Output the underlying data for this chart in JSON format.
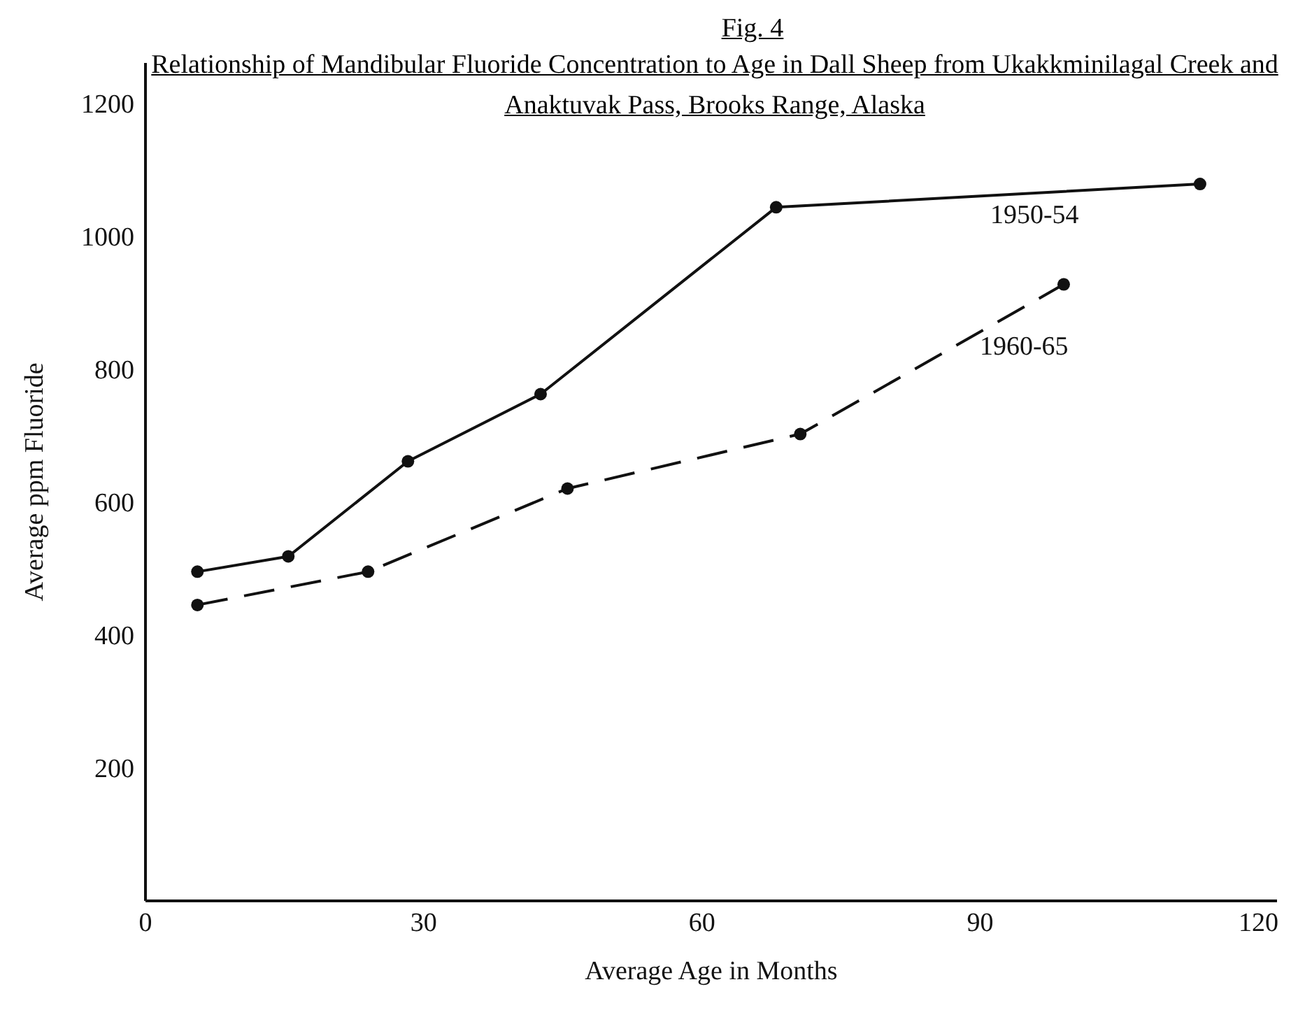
{
  "chart_data": {
    "type": "line",
    "title": "Fig. 4",
    "subtitle": "Relationship of Mandibular Fluoride Concentration to Age in Dall Sheep from Ukakkminilagal Creek and Anaktuvak Pass, Brooks Range, Alaska",
    "xlabel": "Average Age in Months",
    "ylabel": "Average ppm  Fluoride",
    "xlim": [
      0,
      122
    ],
    "xticks": [
      0,
      30,
      60,
      90,
      120
    ],
    "ylim": [
      0,
      1260
    ],
    "yticks": [
      200,
      400,
      600,
      800,
      1000,
      1200
    ],
    "grid": false,
    "legend": false,
    "marker": "circle",
    "series": [
      {
        "name": "1950-54",
        "color": "#111111",
        "line_style": "solid",
        "x": [
          5.6,
          15.4,
          28.3,
          42.6,
          68,
          113.7
        ],
        "values": [
          495,
          518,
          661,
          762,
          1043,
          1078
        ]
      },
      {
        "name": "1960-65",
        "color": "#111111",
        "line_style": "dashed",
        "x": [
          5.6,
          24,
          45.5,
          70.6,
          99
        ],
        "values": [
          445,
          495,
          620,
          702,
          927
        ]
      }
    ]
  }
}
